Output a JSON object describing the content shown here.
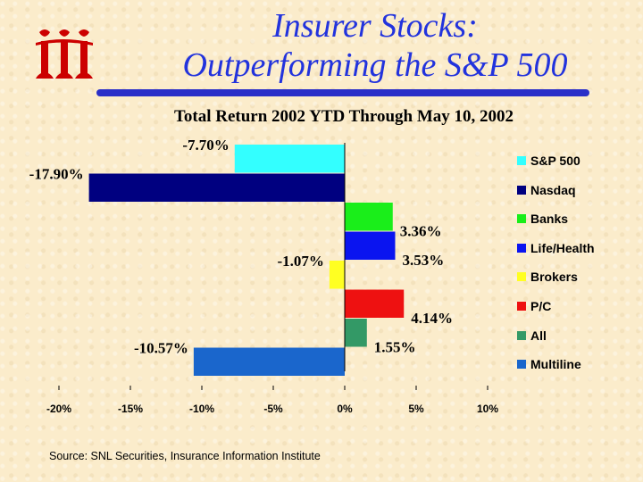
{
  "slide": {
    "title_line1": "Insurer Stocks:",
    "title_line2": "Outperforming the S&P 500",
    "source": "Source: SNL Securities, Insurance Information Institute",
    "logo_text": "iii",
    "colors": {
      "title": "#2233dd",
      "rule": "#2a2fc8",
      "background": "#fbeccb",
      "logo": "#cc0000"
    }
  },
  "chart_data": {
    "type": "bar",
    "orientation": "horizontal",
    "title": "Total Return 2002 YTD Through May 10, 2002",
    "xlim": [
      -20,
      10
    ],
    "xticks": [
      "-20%",
      "-15%",
      "-10%",
      "-5%",
      "0%",
      "5%",
      "10%"
    ],
    "xtick_values": [
      -20,
      -15,
      -10,
      -5,
      0,
      5,
      10
    ],
    "legend_position": "right",
    "grid": false,
    "series": [
      {
        "name": "S&P 500",
        "value": -7.7,
        "label": "-7.70%",
        "color": "#33ffff"
      },
      {
        "name": "Nasdaq",
        "value": -17.9,
        "label": "-17.90%",
        "color": "#000080"
      },
      {
        "name": "Banks",
        "value": 3.36,
        "label": "3.36%",
        "color": "#1aee1a"
      },
      {
        "name": "Life/Health",
        "value": 3.53,
        "label": "3.53%",
        "color": "#0a14f0"
      },
      {
        "name": "Brokers",
        "value": -1.07,
        "label": "-1.07%",
        "color": "#ffff22"
      },
      {
        "name": "P/C",
        "value": 4.14,
        "label": "4.14%",
        "color": "#ee1111"
      },
      {
        "name": "All",
        "value": 1.55,
        "label": "1.55%",
        "color": "#339966"
      },
      {
        "name": "Multiline",
        "value": -10.57,
        "label": "-10.57%",
        "color": "#1a66cc"
      }
    ]
  }
}
